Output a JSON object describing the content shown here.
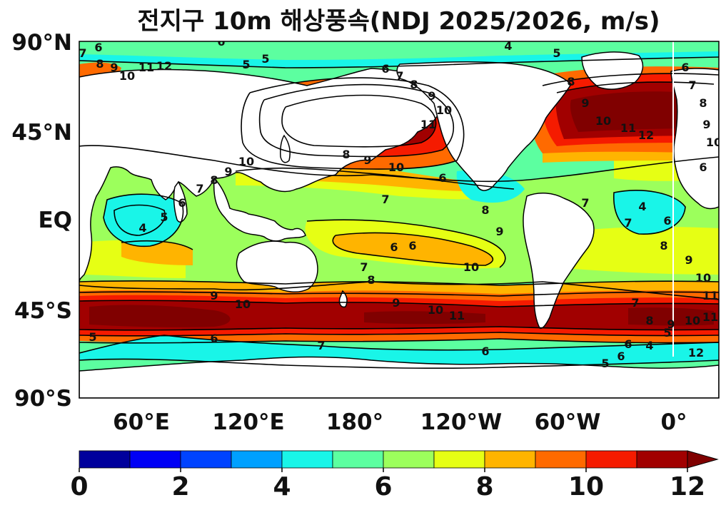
{
  "title": "전지구 10m 해상풍속(NDJ 2025/2026, m/s)",
  "map": {
    "y_axis_labels": [
      "90°N",
      "45°N",
      "EQ",
      "45°S",
      "90°S"
    ],
    "x_axis_labels": [
      "60°E",
      "120°E",
      "180°",
      "120°W",
      "60°W",
      "0°"
    ],
    "lon_range": [
      25,
      385
    ],
    "lat_range": [
      -90,
      90
    ],
    "land_color": "#ffffff",
    "contour_labels": [
      "6",
      "5",
      "4",
      "5",
      "6",
      "7",
      "8",
      "9",
      "10",
      "11",
      "12",
      "6",
      "7",
      "8",
      "9",
      "10",
      "8",
      "9",
      "10",
      "11",
      "4",
      "5",
      "6",
      "7",
      "8",
      "9",
      "10",
      "7",
      "6",
      "6",
      "6",
      "7",
      "8",
      "9",
      "10",
      "11",
      "9",
      "10",
      "5",
      "6",
      "7",
      "6",
      "8",
      "9",
      "10",
      "5",
      "6",
      "4",
      "7",
      "6",
      "8",
      "9",
      "10",
      "11",
      "5",
      "8",
      "9",
      "10",
      "11",
      "12",
      "6",
      "7",
      "8",
      "9",
      "10",
      "6",
      "7",
      "8",
      "9",
      "10",
      "11",
      "12",
      "4",
      "5",
      "6",
      "7"
    ]
  },
  "colorbar": {
    "bounds": [
      0,
      1,
      2,
      3,
      4,
      5,
      6,
      7,
      8,
      9,
      10,
      11,
      12
    ],
    "colors": [
      "#00009c",
      "#0000f5",
      "#0043ff",
      "#00a0ff",
      "#19f5e8",
      "#5cffa0",
      "#9cff5c",
      "#e6ff14",
      "#ffb400",
      "#ff6a00",
      "#f51b00",
      "#a10000"
    ],
    "extend_color": "#800000",
    "tick_labels": [
      "0",
      "2",
      "4",
      "6",
      "8",
      "10",
      "12"
    ]
  }
}
